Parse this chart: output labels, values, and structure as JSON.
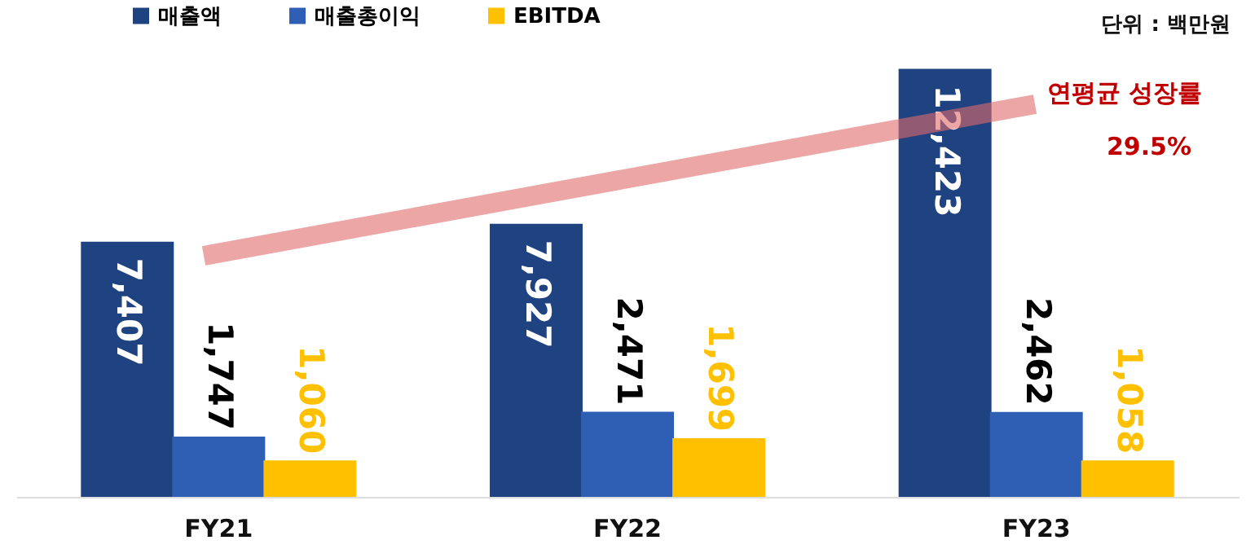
{
  "chart_data": {
    "type": "bar",
    "categories": [
      "FY21",
      "FY22",
      "FY23"
    ],
    "series": [
      {
        "name": "매출액",
        "color": "#1f4280",
        "values": [
          7407,
          7927,
          12423
        ],
        "value_labels": [
          "7,407",
          "7,927",
          "12,423"
        ]
      },
      {
        "name": "매출총이익",
        "color": "#2e5fb4",
        "values": [
          1747,
          2471,
          2462
        ],
        "value_labels": [
          "1,747",
          "2,471",
          "2,462"
        ]
      },
      {
        "name": "EBITDA",
        "color": "#ffc000",
        "values": [
          1060,
          1699,
          1058
        ],
        "value_labels": [
          "1,060",
          "1,699",
          "1,058"
        ]
      }
    ],
    "tick_labels": "x",
    "grid": false,
    "legend": "top left",
    "annotations": [
      "단위 : 백만원",
      "연평균 성장률",
      "29.5%"
    ]
  }
}
